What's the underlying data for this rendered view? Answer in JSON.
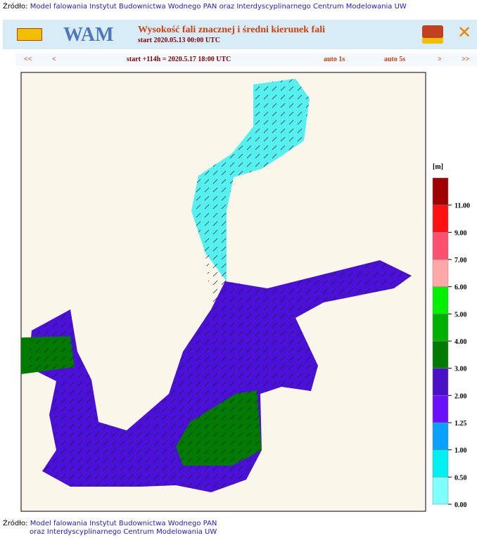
{
  "source_top": {
    "label": "Źródło:",
    "link": "Model falowania Instytut Budownictwa Wodnego PAN oraz Interdyscyplinarnego Centrum Modelowania UW"
  },
  "header": {
    "logo_text": "WAM",
    "title": "Wysokość fali znacznej i średni kierunek fali",
    "subtitle": "start 2020.05.13 00:00 UTC"
  },
  "nav": {
    "first": "<<",
    "prev": "<",
    "time": "start +114h  =  2020.5.17 18:00 UTC",
    "auto1": "auto 1s",
    "auto5": "auto 5s",
    "next": ">",
    "last": ">>"
  },
  "legend": {
    "unit": "[m]",
    "labels": [
      "0.00",
      "0.50",
      "1.00",
      "1.25",
      "2.00",
      "3.00",
      "4.00",
      "5.00",
      "6.00",
      "7.00",
      "9.00",
      "11.00"
    ],
    "colors": [
      "#80ffff",
      "#00f0f0",
      "#0aa0ff",
      "#6a10ff",
      "#4a10c8",
      "#007a00",
      "#00b000",
      "#00f000",
      "#ffa8a8",
      "#ff5070",
      "#ff1010",
      "#a00000"
    ]
  },
  "source_bottom": {
    "label": "Źródło:",
    "line1": "Model falowania Instytut Budownictwa Wodnego PAN",
    "line2": "oraz Interdyscyplinarnego Centrum Modelowania UW"
  }
}
